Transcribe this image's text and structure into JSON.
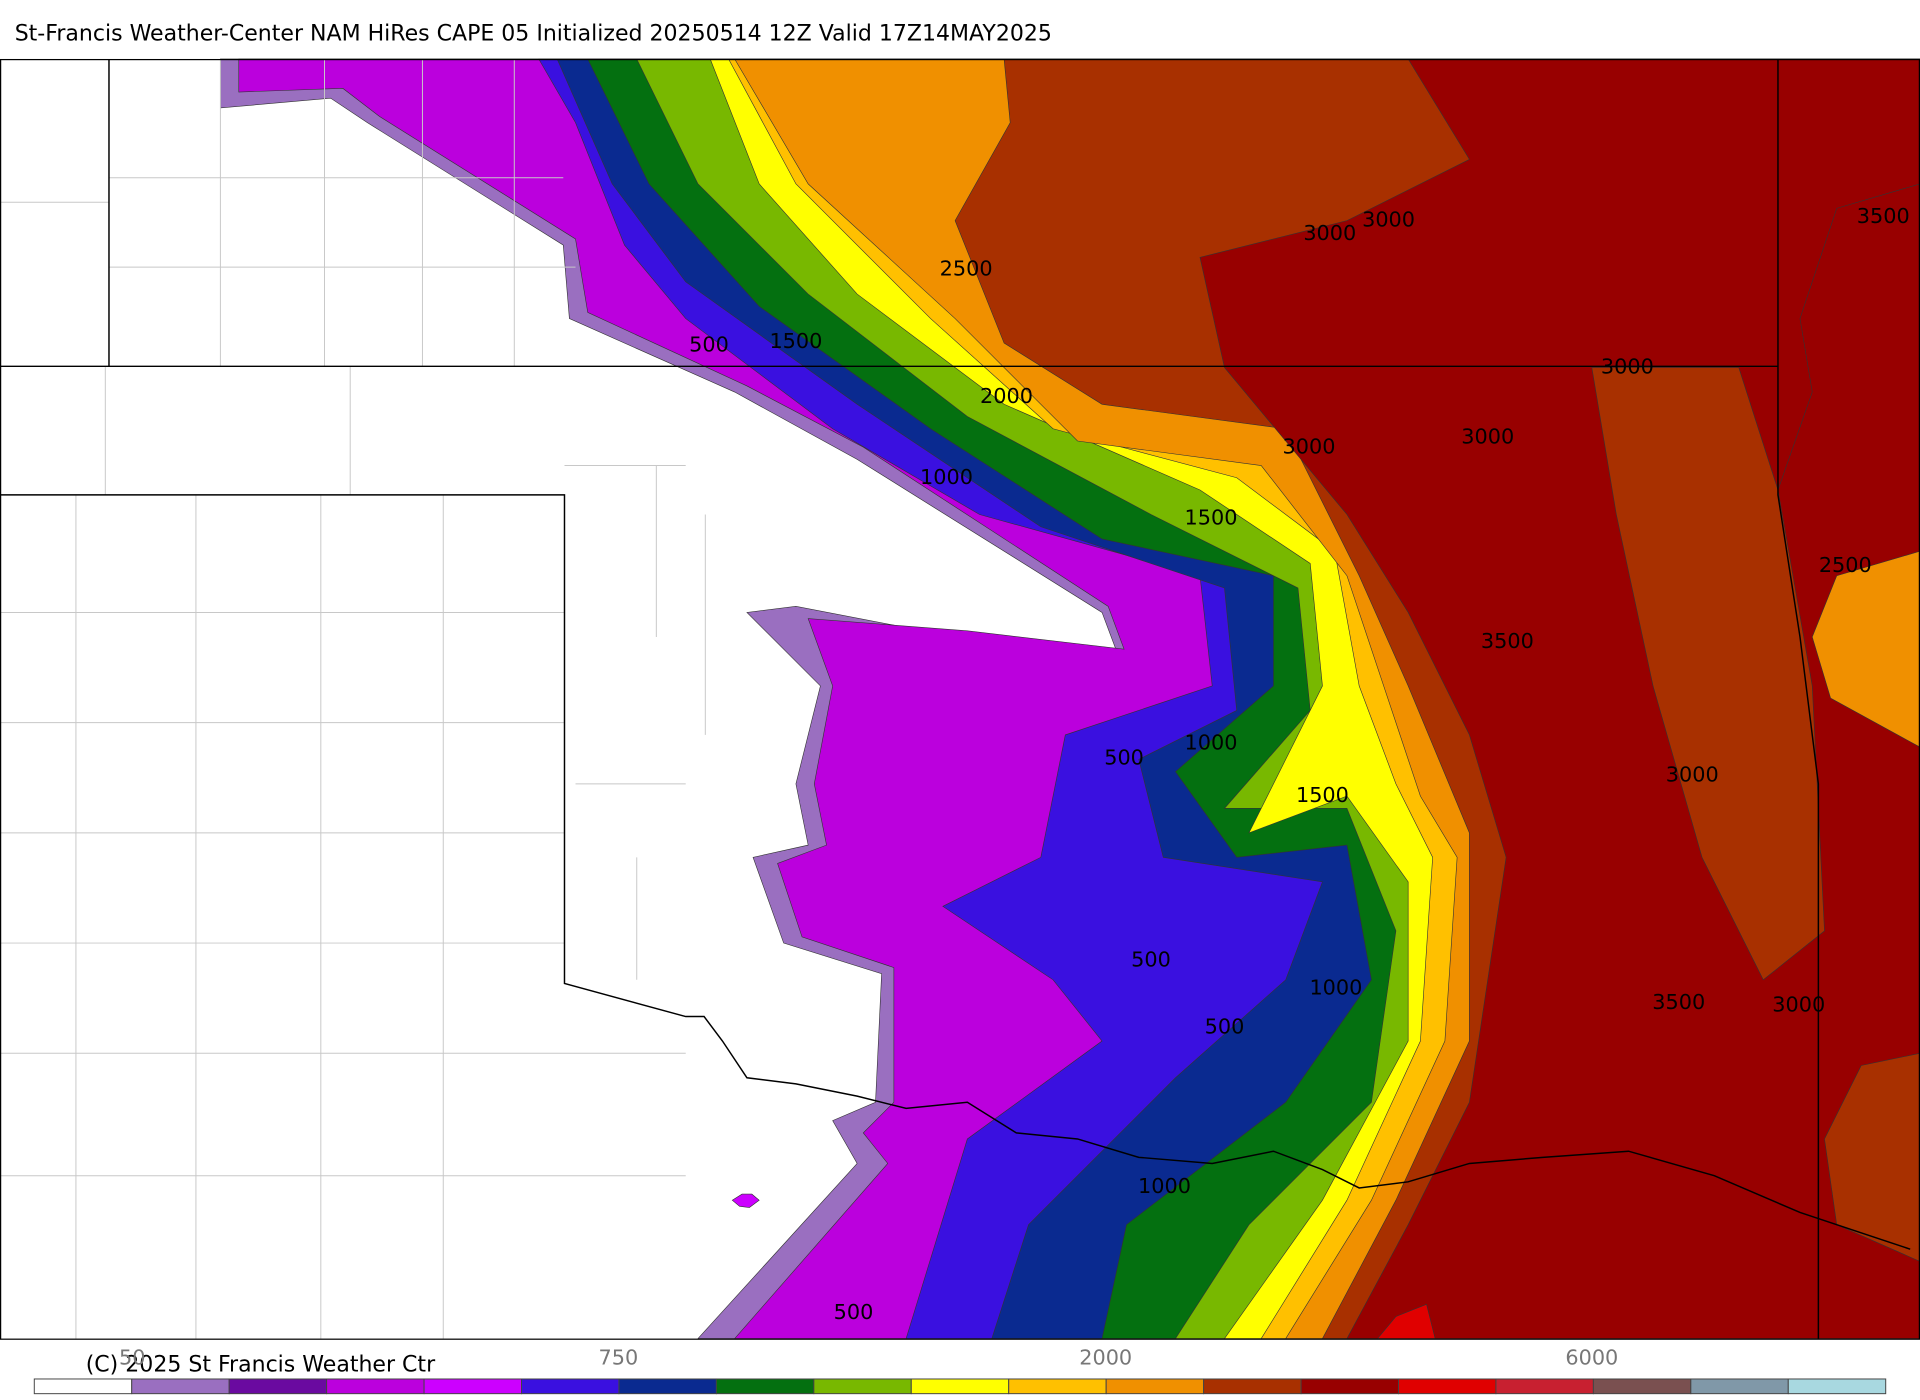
{
  "title": "St-Francis Weather-Center NAM HiRes CAPE  05 Initialized 20250514 12Z Valid 17Z14MAY2025",
  "copyright": "(C) 2025 St Francis Weather Ctr",
  "contour_labels": [
    "500",
    "1500",
    "2500",
    "2000",
    "1000",
    "1500",
    "3000",
    "3000",
    "3000",
    "3000",
    "3000",
    "3500",
    "2500",
    "3500",
    "500",
    "1000",
    "1500",
    "3000",
    "500",
    "1000",
    "500",
    "3500",
    "3000",
    "1000",
    "500"
  ],
  "colorbar": {
    "colors": [
      "#ffffff",
      "#9a6fc0",
      "#6a0aa0",
      "#bb00dd",
      "#cc00ff",
      "#3a10e0",
      "#0a2a90",
      "#047010",
      "#78b800",
      "#ffff00",
      "#ffc000",
      "#f09000",
      "#a83000",
      "#980000",
      "#e00000",
      "#c82030",
      "#7a5050",
      "#8098a8",
      "#a8d8e0"
    ],
    "labels": [
      "50",
      "750",
      "2000",
      "6000"
    ]
  }
}
